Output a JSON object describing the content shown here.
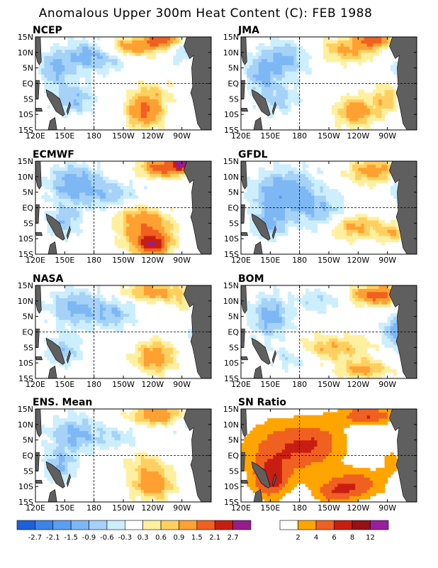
{
  "title": "Anomalous Upper 300m Heat Content (C): FEB 1988",
  "lat_labels": [
    "15N",
    "10N",
    "5N",
    "EQ",
    "5S",
    "10S",
    "15S"
  ],
  "lon_labels": [
    "120E",
    "150E",
    "180",
    "150W",
    "120W",
    "90W"
  ],
  "panels": [
    {
      "id": "ncep",
      "label": "NCEP",
      "kind": "anom"
    },
    {
      "id": "jma",
      "label": "JMA",
      "kind": "anom"
    },
    {
      "id": "ecmwf",
      "label": "ECMWF",
      "kind": "anom"
    },
    {
      "id": "gfdl",
      "label": "GFDL",
      "kind": "anom"
    },
    {
      "id": "nasa",
      "label": "NASA",
      "kind": "anom"
    },
    {
      "id": "bom",
      "label": "BOM",
      "kind": "anom"
    },
    {
      "id": "ens",
      "label": "ENS. Mean",
      "kind": "anom"
    },
    {
      "id": "sn",
      "label": "SN Ratio",
      "kind": "sn"
    }
  ],
  "anomaly_colorbar": {
    "labels": [
      "-2.7",
      "-2.1",
      "-1.5",
      "-0.9",
      "-0.6",
      "-0.3",
      "0.3",
      "0.6",
      "0.9",
      "1.5",
      "2.1",
      "2.7"
    ],
    "colors": [
      "#1e60d8",
      "#3c84e8",
      "#5a9ef0",
      "#7eb8f4",
      "#a6d2f8",
      "#cdeefc",
      "#ffffff",
      "#fff0a0",
      "#ffd060",
      "#ffa032",
      "#f06020",
      "#c81e12",
      "#961e8c"
    ]
  },
  "sn_colorbar": {
    "labels": [
      "2",
      "4",
      "6",
      "8",
      "12"
    ],
    "colors": [
      "#ffffff",
      "#ffa500",
      "#f06020",
      "#c81e12",
      "#961014",
      "#9a1ea0"
    ]
  },
  "colors": {
    "land": "#5f5f5f",
    "frame": "#000000"
  }
}
